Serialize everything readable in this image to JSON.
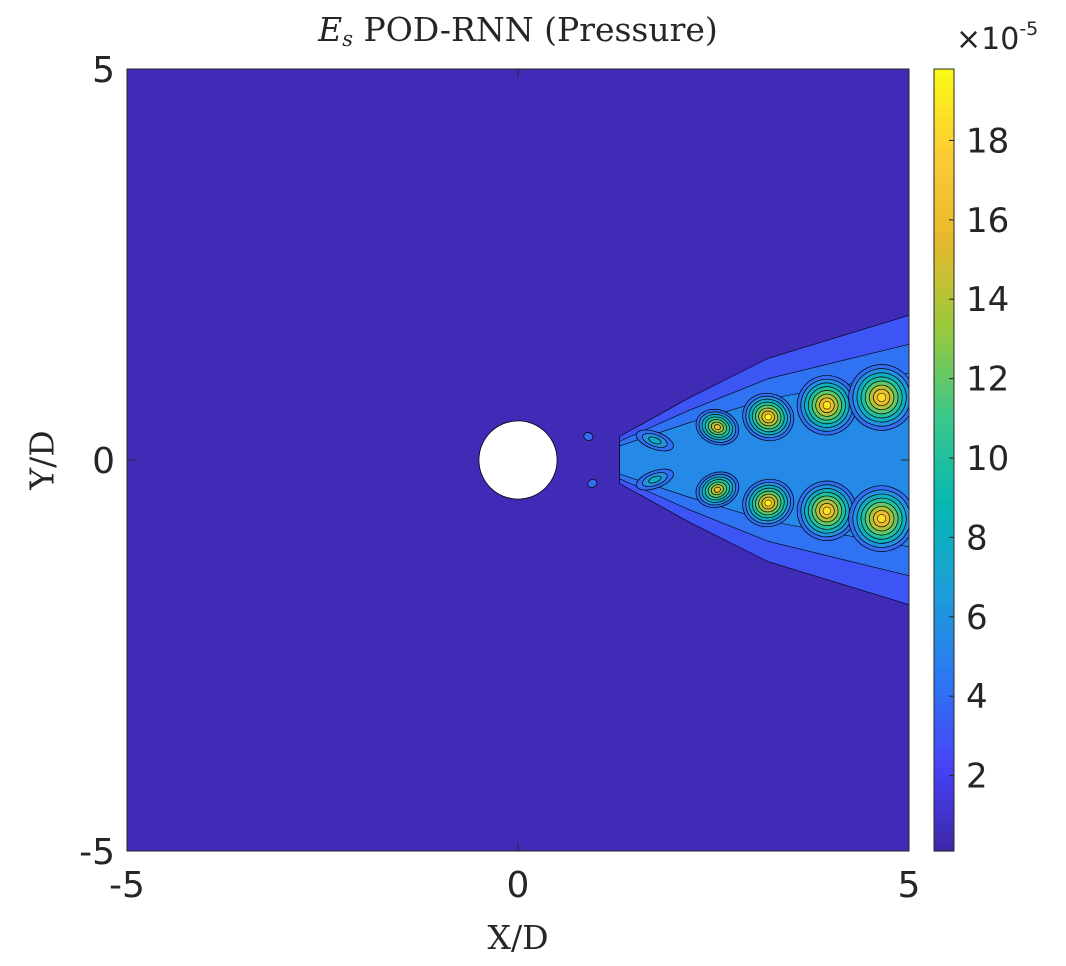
{
  "chart_data": {
    "type": "heatmap",
    "title": {
      "symbol": "E",
      "subscript": "s",
      "text": "POD-RNN (Pressure)"
    },
    "xlabel": "X/D",
    "ylabel": "Y/D",
    "xlim": [
      -5,
      5
    ],
    "ylim": [
      -5,
      5
    ],
    "x_ticks": [
      "-5",
      "0",
      "5"
    ],
    "y_ticks": [
      "5",
      "0",
      "-5"
    ],
    "colorbar": {
      "range": [
        0.1,
        19.8
      ],
      "ticks": [
        "2",
        "4",
        "6",
        "8",
        "10",
        "12",
        "14",
        "16",
        "18"
      ],
      "exponent_base": "×10",
      "exponent": "-5",
      "colormap": [
        "#3e26a8",
        "#4743f8",
        "#2c79f2",
        "#1d9ed8",
        "#06b8b3",
        "#3ac78a",
        "#97c93d",
        "#e5b92d",
        "#fdca35",
        "#f9fb15"
      ]
    },
    "background_value": 0.5,
    "obstacle": {
      "shape": "circle",
      "center": [
        0,
        0
      ],
      "diameter": 1
    },
    "hotspots": [
      {
        "x": 1.75,
        "y": 0.25,
        "peak": 8.0,
        "rx": 0.25,
        "ry": 0.11
      },
      {
        "x": 1.75,
        "y": -0.25,
        "peak": 8.0,
        "rx": 0.25,
        "ry": 0.11
      },
      {
        "x": 2.55,
        "y": 0.42,
        "peak": 16.0,
        "rx": 0.28,
        "ry": 0.22
      },
      {
        "x": 2.55,
        "y": -0.38,
        "peak": 16.0,
        "rx": 0.28,
        "ry": 0.22
      },
      {
        "x": 3.2,
        "y": 0.55,
        "peak": 19.5,
        "rx": 0.33,
        "ry": 0.3
      },
      {
        "x": 3.2,
        "y": -0.55,
        "peak": 19.5,
        "rx": 0.33,
        "ry": 0.3
      },
      {
        "x": 3.95,
        "y": 0.7,
        "peak": 19.0,
        "rx": 0.38,
        "ry": 0.38
      },
      {
        "x": 3.95,
        "y": -0.65,
        "peak": 19.0,
        "rx": 0.38,
        "ry": 0.38
      },
      {
        "x": 4.65,
        "y": 0.8,
        "peak": 18.5,
        "rx": 0.42,
        "ry": 0.42
      },
      {
        "x": 4.65,
        "y": -0.75,
        "peak": 18.5,
        "rx": 0.42,
        "ry": 0.42
      },
      {
        "x": 0.9,
        "y": 0.3,
        "peak": 3.0,
        "rx": 0.06,
        "ry": 0.05
      },
      {
        "x": 0.95,
        "y": -0.3,
        "peak": 3.0,
        "rx": 0.06,
        "ry": 0.05
      }
    ],
    "wake_envelope": [
      {
        "x": 1.3,
        "half_width": 0.3,
        "level": 3.0
      },
      {
        "x": 2.2,
        "half_width": 0.8,
        "level": 4.0
      },
      {
        "x": 3.2,
        "half_width": 1.3,
        "level": 5.0
      },
      {
        "x": 5.0,
        "half_width": 1.85,
        "level": 5.5
      }
    ],
    "grid": false,
    "legend": "none"
  }
}
